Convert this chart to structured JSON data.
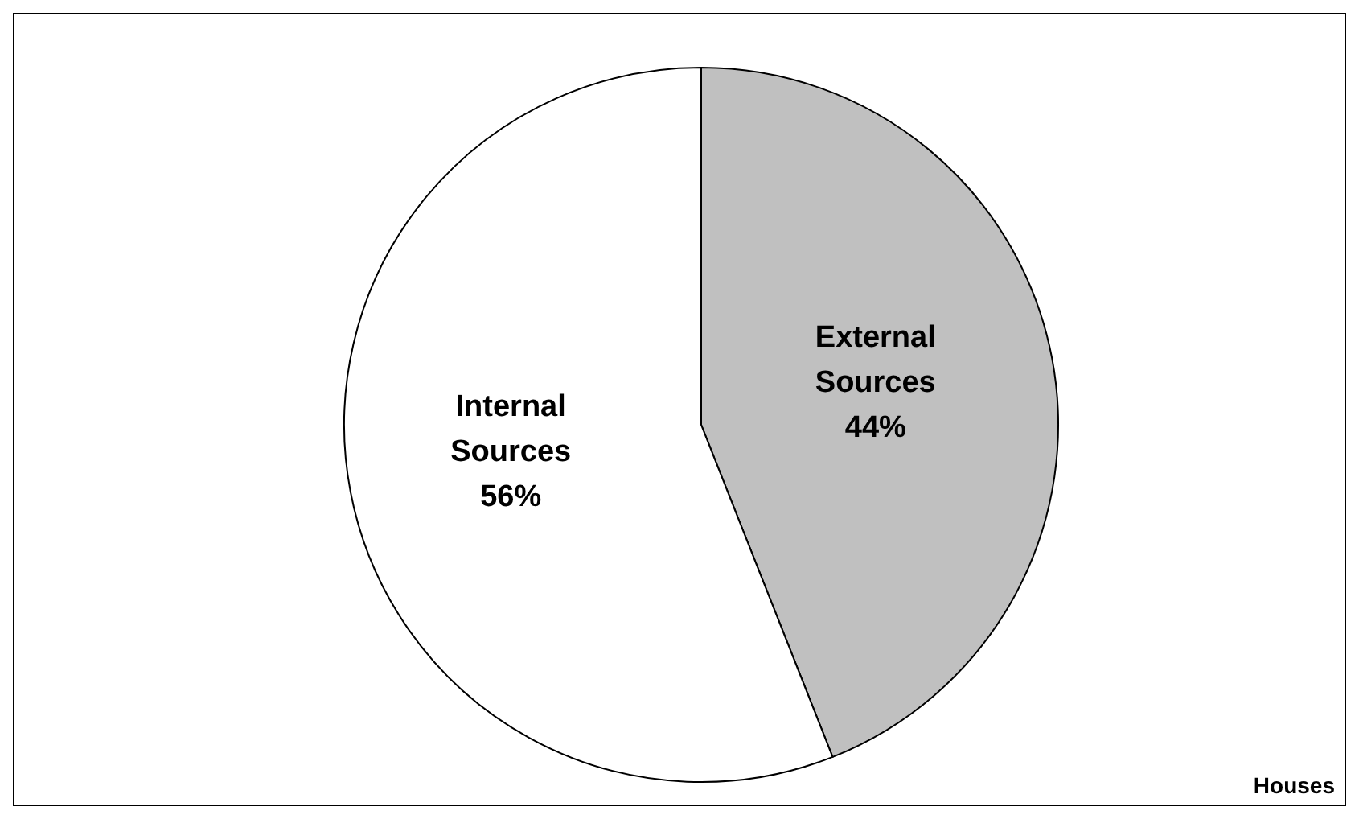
{
  "chart_data": {
    "type": "pie",
    "categories": [
      "External Sources",
      "Internal Sources"
    ],
    "values": [
      44,
      56
    ],
    "colors": [
      "#c0c0c0",
      "#ffffff"
    ],
    "value_labels": [
      "44%",
      "56%"
    ],
    "annotations": [
      "Houses"
    ]
  }
}
